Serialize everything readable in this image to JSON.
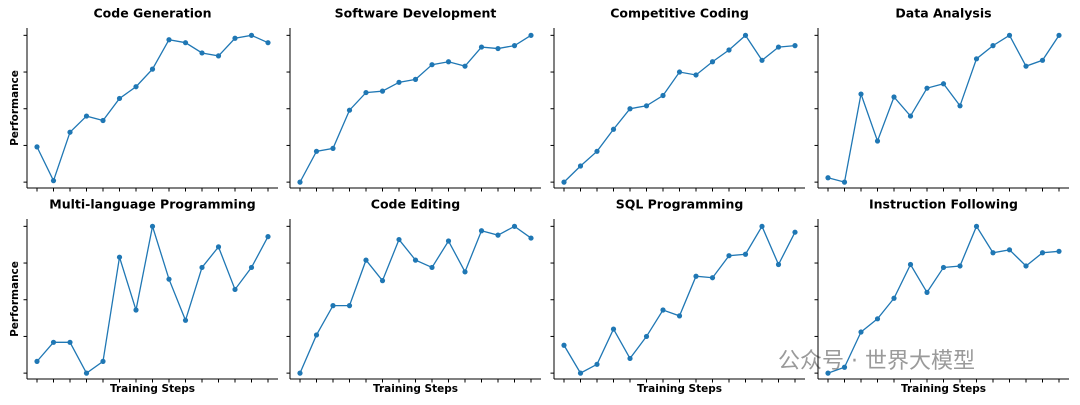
{
  "chart_data": [
    {
      "type": "line",
      "title": "Code Generation",
      "ylabel": "Performance",
      "categories": [
        null,
        null,
        null,
        null,
        null,
        null,
        null,
        null,
        null,
        null,
        null,
        null,
        null,
        null,
        null
      ],
      "values": [
        24,
        1,
        34,
        45,
        42,
        57,
        65,
        77,
        97,
        95,
        88,
        86,
        98,
        100,
        95
      ],
      "color": "#1f77b4",
      "ylim": [
        -4,
        105
      ],
      "yticks": [
        0,
        25,
        50,
        75,
        100
      ]
    },
    {
      "type": "line",
      "title": "Software Development",
      "categories": [
        null,
        null,
        null,
        null,
        null,
        null,
        null,
        null,
        null,
        null,
        null,
        null,
        null,
        null,
        null
      ],
      "values": [
        0,
        21,
        23,
        49,
        61,
        62,
        68,
        70,
        80,
        82,
        79,
        92,
        91,
        93,
        100
      ],
      "color": "#1f77b4",
      "ylim": [
        -4,
        105
      ],
      "yticks": [
        0,
        25,
        50,
        75,
        100
      ]
    },
    {
      "type": "line",
      "title": "Competitive Coding",
      "categories": [
        null,
        null,
        null,
        null,
        null,
        null,
        null,
        null,
        null,
        null,
        null,
        null,
        null,
        null,
        null
      ],
      "values": [
        0,
        11,
        21,
        36,
        50,
        52,
        59,
        75,
        73,
        82,
        90,
        100,
        83,
        92,
        93
      ],
      "color": "#1f77b4",
      "ylim": [
        -4,
        105
      ],
      "yticks": [
        0,
        25,
        50,
        75,
        100
      ]
    },
    {
      "type": "line",
      "title": "Data Analysis",
      "categories": [
        null,
        null,
        null,
        null,
        null,
        null,
        null,
        null,
        null,
        null,
        null,
        null,
        null,
        null,
        null
      ],
      "values": [
        3,
        0,
        60,
        28,
        58,
        45,
        64,
        67,
        52,
        84,
        93,
        100,
        79,
        83,
        100
      ],
      "color": "#1f77b4",
      "ylim": [
        -4,
        105
      ],
      "yticks": [
        0,
        25,
        50,
        75,
        100
      ]
    },
    {
      "type": "line",
      "title": "Multi-language Programming",
      "ylabel": "Performance",
      "xlabel": "Training Steps",
      "categories": [
        null,
        null,
        null,
        null,
        null,
        null,
        null,
        null,
        null,
        null,
        null,
        null,
        null,
        null,
        null
      ],
      "values": [
        8,
        21,
        21,
        0,
        8,
        79,
        43,
        100,
        64,
        36,
        72,
        86,
        57,
        72,
        93
      ],
      "color": "#1f77b4",
      "ylim": [
        -4,
        105
      ],
      "yticks": [
        0,
        25,
        50,
        75,
        100
      ]
    },
    {
      "type": "line",
      "title": "Code Editing",
      "xlabel": "Training Steps",
      "categories": [
        null,
        null,
        null,
        null,
        null,
        null,
        null,
        null,
        null,
        null,
        null,
        null,
        null,
        null,
        null
      ],
      "values": [
        0,
        26,
        46,
        46,
        77,
        63,
        91,
        77,
        72,
        90,
        69,
        97,
        94,
        100,
        92
      ],
      "color": "#1f77b4",
      "ylim": [
        -4,
        105
      ],
      "yticks": [
        0,
        25,
        50,
        75,
        100
      ]
    },
    {
      "type": "line",
      "title": "SQL Programming",
      "xlabel": "Training Steps",
      "categories": [
        null,
        null,
        null,
        null,
        null,
        null,
        null,
        null,
        null,
        null,
        null,
        null,
        null,
        null,
        null
      ],
      "values": [
        19,
        0,
        6,
        30,
        10,
        25,
        43,
        39,
        66,
        65,
        80,
        81,
        100,
        74,
        96
      ],
      "color": "#1f77b4",
      "ylim": [
        -4,
        105
      ],
      "yticks": [
        0,
        25,
        50,
        75,
        100
      ]
    },
    {
      "type": "line",
      "title": "Instruction Following",
      "xlabel": "Training Steps",
      "categories": [
        null,
        null,
        null,
        null,
        null,
        null,
        null,
        null,
        null,
        null,
        null,
        null,
        null,
        null,
        null
      ],
      "values": [
        0,
        4,
        28,
        37,
        51,
        74,
        55,
        72,
        73,
        100,
        82,
        84,
        73,
        82,
        83
      ],
      "color": "#1f77b4",
      "ylim": [
        -4,
        105
      ],
      "yticks": [
        0,
        25,
        50,
        75,
        100
      ]
    }
  ],
  "watermark": "公众号 · 世界大模型"
}
